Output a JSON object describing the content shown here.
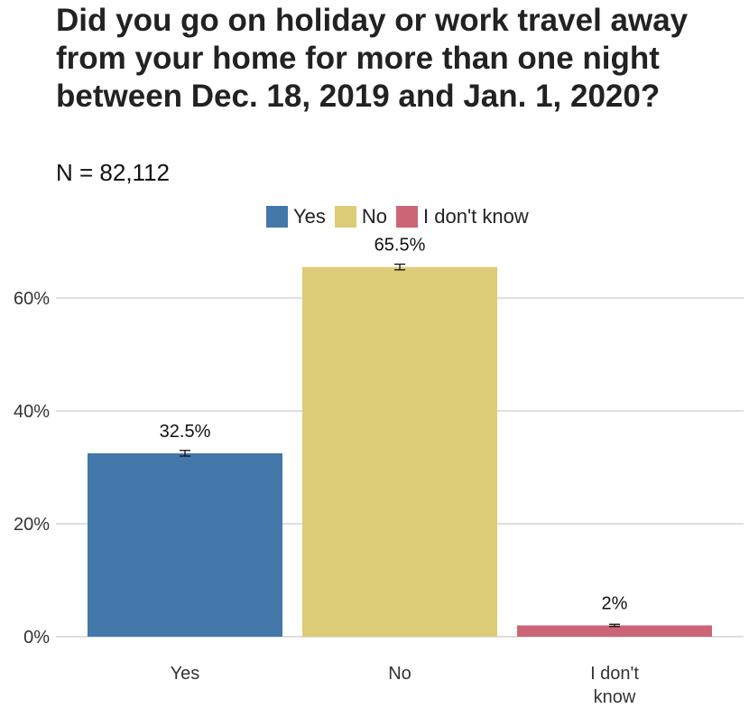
{
  "chart_data": {
    "type": "bar",
    "title": "Did you go on holiday or work travel away from your home for more than one night between Dec. 18, 2019 and Jan. 1, 2020?",
    "subtitle": "N = 82,112",
    "categories": [
      "Yes",
      "No",
      "I don't know"
    ],
    "category_tick_lines": [
      [
        "Yes"
      ],
      [
        "No"
      ],
      [
        "I don't",
        "know"
      ]
    ],
    "values": [
      32.5,
      65.5,
      2
    ],
    "data_labels": [
      "32.5%",
      "65.5%",
      "2%"
    ],
    "error_bars": [
      [
        32.0,
        33.0
      ],
      [
        65.0,
        66.0
      ],
      [
        1.8,
        2.2
      ]
    ],
    "colors": [
      "#4477aa",
      "#ddcc77",
      "#cc6677"
    ],
    "legend": {
      "placement": "top",
      "entries": [
        "Yes",
        "No",
        "I don't know"
      ]
    },
    "y_ticks": [
      0,
      20,
      40,
      60
    ],
    "y_tick_labels": [
      "0%",
      "20%",
      "40%",
      "60%"
    ],
    "ylim": [
      0,
      70
    ],
    "xlabel": "",
    "ylabel": "",
    "grid": true
  }
}
